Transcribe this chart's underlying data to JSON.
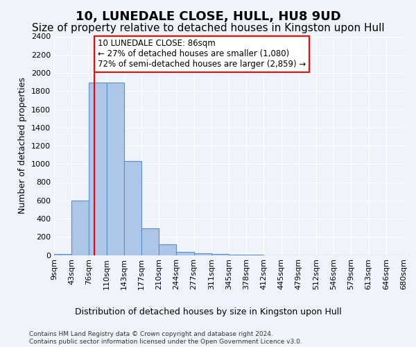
{
  "title": "10, LUNEDALE CLOSE, HULL, HU8 9UD",
  "subtitle": "Size of property relative to detached houses in Kingston upon Hull",
  "xlabel_bottom": "Distribution of detached houses by size in Kingston upon Hull",
  "ylabel": "Number of detached properties",
  "footnote": "Contains HM Land Registry data © Crown copyright and database right 2024.\nContains public sector information licensed under the Open Government Licence v3.0.",
  "bin_labels": [
    "9sqm",
    "43sqm",
    "76sqm",
    "110sqm",
    "143sqm",
    "177sqm",
    "210sqm",
    "244sqm",
    "277sqm",
    "311sqm",
    "345sqm",
    "378sqm",
    "412sqm",
    "445sqm",
    "479sqm",
    "512sqm",
    "546sqm",
    "579sqm",
    "613sqm",
    "646sqm",
    "680sqm"
  ],
  "bar_values": [
    15,
    600,
    1890,
    1890,
    1030,
    290,
    115,
    38,
    20,
    10,
    3,
    2,
    0,
    0,
    0,
    0,
    0,
    0,
    0,
    0
  ],
  "ylim": [
    0,
    2400
  ],
  "yticks": [
    0,
    200,
    400,
    600,
    800,
    1000,
    1200,
    1400,
    1600,
    1800,
    2000,
    2200,
    2400
  ],
  "bar_color": "#aec6e8",
  "bar_edge_color": "#5a8fc4",
  "annotation_text": "10 LUNEDALE CLOSE: 86sqm\n← 27% of detached houses are smaller (1,080)\n72% of semi-detached houses are larger (2,859) →",
  "annotation_box_color": "white",
  "annotation_box_edge_color": "red",
  "title_fontsize": 13,
  "subtitle_fontsize": 11,
  "axis_fontsize": 9,
  "tick_fontsize": 8,
  "background_color": "#f0f4fa",
  "plot_bg_color": "#f0f4fa"
}
